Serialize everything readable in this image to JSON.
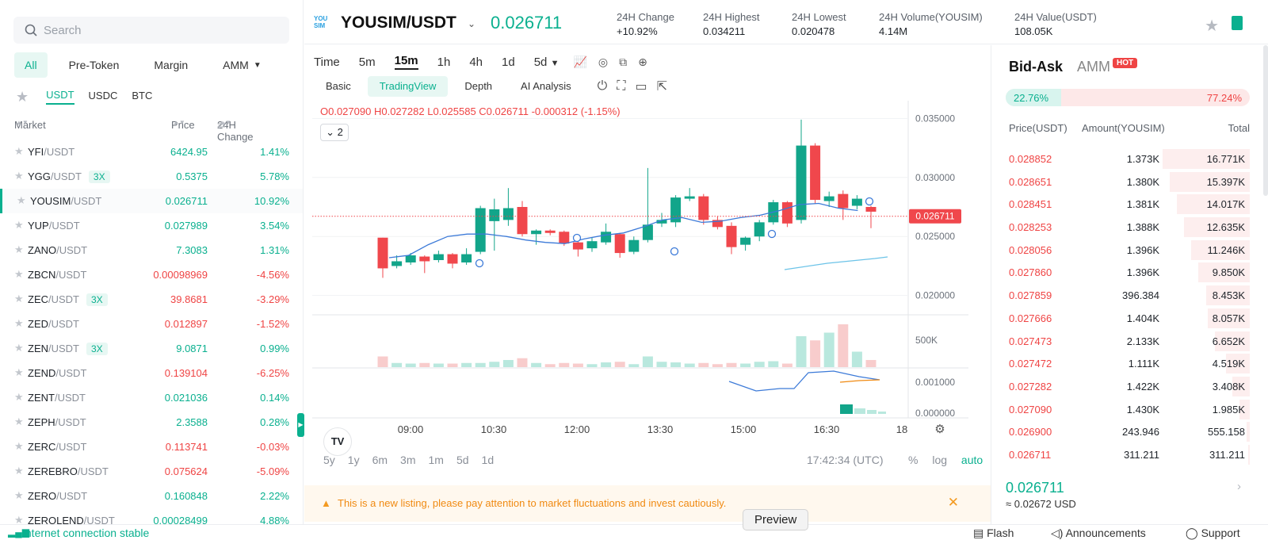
{
  "search": {
    "placeholder": "Search"
  },
  "filter_tabs": [
    "All",
    "Pre-Token",
    "Margin",
    "AMM"
  ],
  "quote_tabs": [
    "USDT",
    "USDC",
    "BTC"
  ],
  "market_head": {
    "market": "Market",
    "price": "Price",
    "change": "24H Change"
  },
  "market_rows": [
    {
      "base": "YFI",
      "quote": "/USDT",
      "badge": "",
      "price": "6424.95",
      "change": "1.41%",
      "dir": "up"
    },
    {
      "base": "YGG",
      "quote": "/USDT",
      "badge": "3X",
      "price": "0.5375",
      "change": "5.78%",
      "dir": "up"
    },
    {
      "base": "YOUSIM",
      "quote": "/USDT",
      "badge": "",
      "price": "0.026711",
      "change": "10.92%",
      "dir": "up",
      "active": true
    },
    {
      "base": "YUP",
      "quote": "/USDT",
      "badge": "",
      "price": "0.027989",
      "change": "3.54%",
      "dir": "up"
    },
    {
      "base": "ZANO",
      "quote": "/USDT",
      "badge": "",
      "price": "7.3083",
      "change": "1.31%",
      "dir": "up"
    },
    {
      "base": "ZBCN",
      "quote": "/USDT",
      "badge": "",
      "price": "0.00098969",
      "change": "-4.56%",
      "dir": "down"
    },
    {
      "base": "ZEC",
      "quote": "/USDT",
      "badge": "3X",
      "price": "39.8681",
      "change": "-3.29%",
      "dir": "down"
    },
    {
      "base": "ZED",
      "quote": "/USDT",
      "badge": "",
      "price": "0.012897",
      "change": "-1.52%",
      "dir": "down"
    },
    {
      "base": "ZEN",
      "quote": "/USDT",
      "badge": "3X",
      "price": "9.0871",
      "change": "0.99%",
      "dir": "up"
    },
    {
      "base": "ZEND",
      "quote": "/USDT",
      "badge": "",
      "price": "0.139104",
      "change": "-6.25%",
      "dir": "down"
    },
    {
      "base": "ZENT",
      "quote": "/USDT",
      "badge": "",
      "price": "0.021036",
      "change": "0.14%",
      "dir": "up"
    },
    {
      "base": "ZEPH",
      "quote": "/USDT",
      "badge": "",
      "price": "2.3588",
      "change": "0.28%",
      "dir": "up"
    },
    {
      "base": "ZERC",
      "quote": "/USDT",
      "badge": "",
      "price": "0.113741",
      "change": "-0.03%",
      "dir": "down"
    },
    {
      "base": "ZEREBRO",
      "quote": "/USDT",
      "badge": "",
      "price": "0.075624",
      "change": "-5.09%",
      "dir": "down"
    },
    {
      "base": "ZERO",
      "quote": "/USDT",
      "badge": "",
      "price": "0.160848",
      "change": "2.22%",
      "dir": "up"
    },
    {
      "base": "ZEROLEND",
      "quote": "/USDT",
      "badge": "",
      "price": "0.00028499",
      "change": "4.88%",
      "dir": "up"
    }
  ],
  "header": {
    "logo_text": "YOU SIM",
    "pair": "YOUSIM/USDT",
    "last_price": "0.026711",
    "stats": [
      {
        "label": "24H Change",
        "value": "+10.92%",
        "color": "green"
      },
      {
        "label": "24H Highest",
        "value": "0.034211",
        "color": ""
      },
      {
        "label": "24H Lowest",
        "value": "0.020478",
        "color": ""
      },
      {
        "label": "24H Volume(YOUSIM)",
        "value": "4.14M",
        "color": ""
      },
      {
        "label": "24H Value(USDT)",
        "value": "108.05K",
        "color": ""
      }
    ]
  },
  "chart_toolbar": {
    "timeframes": [
      "Time",
      "5m",
      "15m",
      "1h",
      "4h",
      "1d",
      "5d"
    ],
    "active_timeframe": "15m",
    "views": [
      "Basic",
      "TradingView",
      "Depth",
      "AI Analysis"
    ],
    "active_view": "TradingView"
  },
  "ohlc": {
    "o": "O0.027090",
    "h": "H0.027282",
    "l": "L0.025585",
    "c": "C0.026711",
    "chg": "-0.000312 (-1.15%)"
  },
  "indicator_count": "2",
  "range_buttons": [
    "5y",
    "1y",
    "6m",
    "3m",
    "1m",
    "5d",
    "1d"
  ],
  "clock": "17:42:34 (UTC)",
  "scale_options": [
    "%",
    "log",
    "auto"
  ],
  "notice": "This is a new listing, please pay attention to market fluctuations and invest cautiously.",
  "chart_data": {
    "type": "candlestick",
    "x_ticks": [
      "09:00",
      "10:30",
      "12:00",
      "13:30",
      "15:00",
      "16:30",
      "18"
    ],
    "y_ticks": [
      "0.035000",
      "0.030000",
      "0.025000",
      "0.020000"
    ],
    "volume_ticks": [
      "500K"
    ],
    "indicator_ticks": [
      "0.001000",
      "0.000000"
    ],
    "ylim": [
      0.0185,
      0.0365
    ],
    "last_price_label": "0.026711",
    "candles": [
      {
        "o": 0.0249,
        "c": 0.0223,
        "h": 0.0249,
        "l": 0.0215
      },
      {
        "o": 0.0225,
        "c": 0.0229,
        "h": 0.0234,
        "l": 0.0223
      },
      {
        "o": 0.0228,
        "c": 0.0234,
        "h": 0.0236,
        "l": 0.0226
      },
      {
        "o": 0.0233,
        "c": 0.0229,
        "h": 0.0234,
        "l": 0.0219
      },
      {
        "o": 0.023,
        "c": 0.0235,
        "h": 0.0238,
        "l": 0.0228
      },
      {
        "o": 0.0235,
        "c": 0.0227,
        "h": 0.0236,
        "l": 0.0223
      },
      {
        "o": 0.0228,
        "c": 0.0235,
        "h": 0.024,
        "l": 0.0226
      },
      {
        "o": 0.0237,
        "c": 0.0274,
        "h": 0.0276,
        "l": 0.0235
      },
      {
        "o": 0.0263,
        "c": 0.0273,
        "h": 0.0282,
        "l": 0.0238
      },
      {
        "o": 0.0264,
        "c": 0.0274,
        "h": 0.0291,
        "l": 0.0259
      },
      {
        "o": 0.0275,
        "c": 0.0252,
        "h": 0.028,
        "l": 0.025
      },
      {
        "o": 0.0252,
        "c": 0.0255,
        "h": 0.0256,
        "l": 0.0243
      },
      {
        "o": 0.0255,
        "c": 0.0253,
        "h": 0.0256,
        "l": 0.0251
      },
      {
        "o": 0.0254,
        "c": 0.0244,
        "h": 0.0255,
        "l": 0.0242
      },
      {
        "o": 0.0245,
        "c": 0.0239,
        "h": 0.0247,
        "l": 0.0233
      },
      {
        "o": 0.024,
        "c": 0.0246,
        "h": 0.0249,
        "l": 0.0237
      },
      {
        "o": 0.0245,
        "c": 0.0254,
        "h": 0.0261,
        "l": 0.0243
      },
      {
        "o": 0.0252,
        "c": 0.0236,
        "h": 0.0253,
        "l": 0.0232
      },
      {
        "o": 0.0237,
        "c": 0.0247,
        "h": 0.025,
        "l": 0.0235
      },
      {
        "o": 0.0247,
        "c": 0.026,
        "h": 0.0308,
        "l": 0.0245
      },
      {
        "o": 0.0261,
        "c": 0.0264,
        "h": 0.027,
        "l": 0.0258
      },
      {
        "o": 0.0262,
        "c": 0.0283,
        "h": 0.0285,
        "l": 0.0258
      },
      {
        "o": 0.0282,
        "c": 0.0284,
        "h": 0.0291,
        "l": 0.028
      },
      {
        "o": 0.0284,
        "c": 0.0264,
        "h": 0.0286,
        "l": 0.026
      },
      {
        "o": 0.0264,
        "c": 0.0258,
        "h": 0.0267,
        "l": 0.0256
      },
      {
        "o": 0.0259,
        "c": 0.0241,
        "h": 0.0262,
        "l": 0.0235
      },
      {
        "o": 0.0243,
        "c": 0.0249,
        "h": 0.025,
        "l": 0.0238
      },
      {
        "o": 0.025,
        "c": 0.0262,
        "h": 0.0264,
        "l": 0.0246
      },
      {
        "o": 0.0262,
        "c": 0.0279,
        "h": 0.0281,
        "l": 0.026
      },
      {
        "o": 0.0279,
        "c": 0.0261,
        "h": 0.028,
        "l": 0.0258
      },
      {
        "o": 0.0264,
        "c": 0.0327,
        "h": 0.0349,
        "l": 0.0261
      },
      {
        "o": 0.0327,
        "c": 0.0281,
        "h": 0.0329,
        "l": 0.0278
      },
      {
        "o": 0.028,
        "c": 0.0284,
        "h": 0.0288,
        "l": 0.0275
      },
      {
        "o": 0.0286,
        "c": 0.0274,
        "h": 0.0289,
        "l": 0.0264
      },
      {
        "o": 0.0276,
        "c": 0.0282,
        "h": 0.0285,
        "l": 0.0273
      },
      {
        "o": 0.0275,
        "c": 0.0271,
        "h": 0.0276,
        "l": 0.0257
      }
    ],
    "volume": [
      0.18,
      0.07,
      0.06,
      0.07,
      0.06,
      0.06,
      0.07,
      0.07,
      0.09,
      0.12,
      0.15,
      0.07,
      0.05,
      0.07,
      0.06,
      0.05,
      0.08,
      0.09,
      0.05,
      0.18,
      0.09,
      0.08,
      0.06,
      0.07,
      0.05,
      0.07,
      0.06,
      0.09,
      0.1,
      0.06,
      0.52,
      0.45,
      0.58,
      0.72,
      0.26,
      0.12
    ],
    "ma_line": [
      0.0232,
      0.0234,
      0.0243,
      0.025,
      0.0252,
      0.0252,
      0.025,
      0.0247,
      0.0245,
      0.0244,
      0.0248,
      0.0251,
      0.0253,
      0.0258,
      0.0264,
      0.0266,
      0.0262,
      0.0263,
      0.0266,
      0.0268,
      0.0272,
      0.0277,
      0.0278,
      0.0274,
      0.0272
    ]
  },
  "book": {
    "tabs": [
      "Bid-Ask",
      "AMM"
    ],
    "hot": "HOT",
    "bid_ratio": "22.76%",
    "ask_ratio": "77.24%",
    "bid_pct": 22.76,
    "head": {
      "price": "Price(USDT)",
      "amount": "Amount(YOUSIM)",
      "total": "Total"
    },
    "asks": [
      {
        "price": "0.028852",
        "amount": "1.373K",
        "total": "16.771K",
        "depth": 1.0
      },
      {
        "price": "0.028651",
        "amount": "1.380K",
        "total": "15.397K",
        "depth": 0.92
      },
      {
        "price": "0.028451",
        "amount": "1.381K",
        "total": "14.017K",
        "depth": 0.84
      },
      {
        "price": "0.028253",
        "amount": "1.388K",
        "total": "12.635K",
        "depth": 0.75
      },
      {
        "price": "0.028056",
        "amount": "1.396K",
        "total": "11.246K",
        "depth": 0.67
      },
      {
        "price": "0.027860",
        "amount": "1.396K",
        "total": "9.850K",
        "depth": 0.59
      },
      {
        "price": "0.027859",
        "amount": "396.384",
        "total": "8.453K",
        "depth": 0.5
      },
      {
        "price": "0.027666",
        "amount": "1.404K",
        "total": "8.057K",
        "depth": 0.48
      },
      {
        "price": "0.027473",
        "amount": "2.133K",
        "total": "6.652K",
        "depth": 0.4
      },
      {
        "price": "0.027472",
        "amount": "1.111K",
        "total": "4.519K",
        "depth": 0.27
      },
      {
        "price": "0.027282",
        "amount": "1.422K",
        "total": "3.408K",
        "depth": 0.2
      },
      {
        "price": "0.027090",
        "amount": "1.430K",
        "total": "1.985K",
        "depth": 0.12
      },
      {
        "price": "0.026900",
        "amount": "243.946",
        "total": "555.158",
        "depth": 0.04
      },
      {
        "price": "0.026711",
        "amount": "311.211",
        "total": "311.211",
        "depth": 0.02
      }
    ],
    "last_price": "0.026711",
    "approx": "≈ 0.02672  USD"
  },
  "footer": {
    "connection": "Internet connection stable",
    "flash": "Flash",
    "announcements": "Announcements",
    "support": "Support",
    "preview": "Preview"
  }
}
